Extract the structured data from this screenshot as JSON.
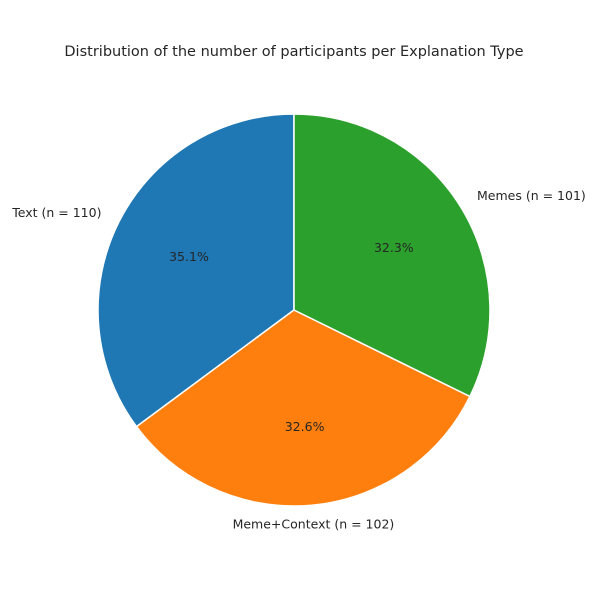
{
  "chart_data": {
    "type": "pie",
    "title": "Distribution of the number of participants per Explanation Type",
    "start_angle_deg": 90,
    "direction": "counterclockwise",
    "slices": [
      {
        "label": "Text (n = 110)",
        "value": 110,
        "percent_label": "35.1%",
        "color": "#1f77b4"
      },
      {
        "label": "Meme+Context (n = 102)",
        "value": 102,
        "percent_label": "32.6%",
        "color": "#ff7f0e"
      },
      {
        "label": "Memes (n = 101)",
        "value": 101,
        "percent_label": "32.3%",
        "color": "#2ca02c"
      }
    ]
  }
}
